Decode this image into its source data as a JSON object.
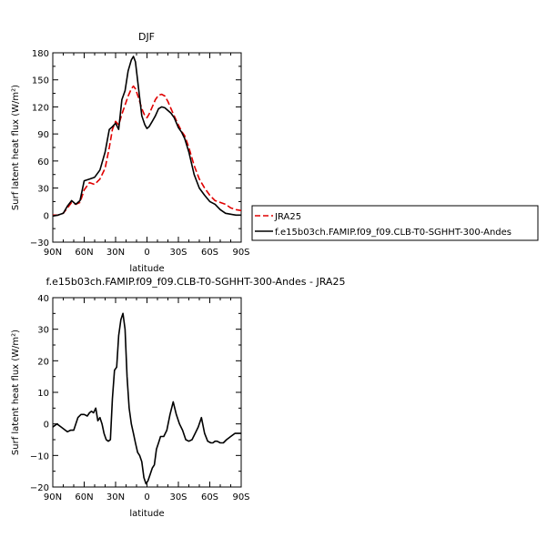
{
  "chart_data": [
    {
      "type": "line",
      "title": "DJF",
      "xlabel": "latitude",
      "ylabel": "Surf latent heat flux (W/m²)",
      "xlim": [
        -90,
        90
      ],
      "ylim": [
        -30,
        180
      ],
      "xticks": [
        -90,
        -60,
        -30,
        0,
        30,
        60,
        90
      ],
      "xtick_labels": [
        "90N",
        "60N",
        "30N",
        "0",
        "30S",
        "60S",
        "90S"
      ],
      "yticks": [
        -30,
        0,
        30,
        60,
        90,
        120,
        150,
        180
      ],
      "ytick_labels": [
        "−30",
        "0",
        "30",
        "60",
        "90",
        "120",
        "150",
        "180"
      ],
      "legend_position": "right",
      "series": [
        {
          "name": "JRA25",
          "color": "#e00000",
          "style": "dashed",
          "x": [
            -90,
            -85,
            -80,
            -76,
            -72,
            -68,
            -64,
            -60,
            -55,
            -50,
            -45,
            -40,
            -36,
            -33,
            -30,
            -27,
            -24,
            -21,
            -18,
            -15,
            -13,
            -11,
            -8,
            -5,
            -2,
            0,
            2,
            5,
            8,
            11,
            14,
            17,
            20,
            23,
            26,
            30,
            33,
            36,
            40,
            45,
            50,
            55,
            60,
            65,
            70,
            75,
            80,
            85,
            90
          ],
          "values": [
            0,
            0,
            2,
            8,
            14,
            12,
            14,
            28,
            36,
            34,
            40,
            52,
            75,
            95,
            104,
            100,
            112,
            122,
            132,
            140,
            143,
            140,
            130,
            118,
            110,
            108,
            112,
            120,
            128,
            133,
            134,
            132,
            126,
            118,
            110,
            100,
            93,
            88,
            75,
            55,
            40,
            30,
            22,
            16,
            14,
            12,
            8,
            6,
            5
          ]
        },
        {
          "name": "f.e15b03ch.FAMIP.f09_f09.CLB-T0-SGHHT-300-Andes",
          "color": "#000000",
          "style": "solid",
          "x": [
            -90,
            -85,
            -80,
            -76,
            -72,
            -68,
            -64,
            -60,
            -55,
            -50,
            -45,
            -40,
            -36,
            -33,
            -30,
            -27,
            -24,
            -21,
            -18,
            -15,
            -13,
            -11,
            -8,
            -5,
            -2,
            0,
            2,
            5,
            8,
            11,
            14,
            17,
            20,
            23,
            26,
            30,
            33,
            36,
            40,
            45,
            50,
            55,
            60,
            65,
            70,
            75,
            80,
            85,
            90
          ],
          "values": [
            -1,
            0,
            2,
            10,
            16,
            12,
            16,
            38,
            40,
            42,
            50,
            70,
            95,
            98,
            102,
            95,
            128,
            138,
            160,
            172,
            176,
            170,
            140,
            110,
            100,
            96,
            98,
            104,
            110,
            118,
            120,
            119,
            116,
            113,
            108,
            97,
            92,
            85,
            70,
            45,
            30,
            22,
            15,
            12,
            6,
            2,
            1,
            0,
            0
          ]
        }
      ]
    },
    {
      "type": "line",
      "title": "f.e15b03ch.FAMIP.f09_f09.CLB-T0-SGHHT-300-Andes - JRA25",
      "xlabel": "latitude",
      "ylabel": "Surf latent heat flux (W/m²)",
      "xlim": [
        -90,
        90
      ],
      "ylim": [
        -20,
        40
      ],
      "xticks": [
        -90,
        -60,
        -30,
        0,
        30,
        60,
        90
      ],
      "xtick_labels": [
        "90N",
        "60N",
        "30N",
        "0",
        "30S",
        "60S",
        "90S"
      ],
      "yticks": [
        -20,
        -10,
        0,
        10,
        20,
        30,
        40
      ],
      "ytick_labels": [
        "−20",
        "−10",
        "0",
        "10",
        "20",
        "30",
        "40"
      ],
      "series": [
        {
          "color": "#000000",
          "style": "solid",
          "x": [
            -90,
            -86,
            -82,
            -78,
            -76,
            -73,
            -70,
            -66,
            -63,
            -60,
            -57,
            -55,
            -53,
            -51,
            -49,
            -47,
            -45,
            -43,
            -41,
            -39,
            -37,
            -35,
            -33,
            -31,
            -29,
            -27,
            -25,
            -23,
            -21,
            -19,
            -17,
            -15,
            -13,
            -11,
            -9,
            -7,
            -5,
            -3,
            -1,
            1,
            3,
            5,
            7,
            9,
            11,
            13,
            16,
            19,
            22,
            25,
            28,
            31,
            34,
            37,
            40,
            43,
            46,
            49,
            52,
            55,
            58,
            61,
            63,
            65,
            67,
            70,
            73,
            76,
            80,
            84,
            87,
            90
          ],
          "values": [
            -1,
            0,
            -1,
            -2,
            -2.5,
            -2,
            -2,
            2,
            3,
            3,
            2.5,
            3.5,
            4,
            3.5,
            5,
            1,
            2,
            0,
            -3,
            -5,
            -5.5,
            -5,
            8,
            17,
            18,
            28,
            33,
            35,
            30,
            15,
            5,
            0,
            -3,
            -6,
            -9,
            -10,
            -12,
            -17,
            -19,
            -18,
            -16,
            -14,
            -13,
            -8,
            -6,
            -4,
            -4,
            -2,
            3,
            7,
            3,
            0,
            -2,
            -5,
            -5.5,
            -5,
            -3,
            -1,
            2,
            -3,
            -5.5,
            -6,
            -6,
            -5.5,
            -5.5,
            -6,
            -6,
            -5,
            -4,
            -3,
            -3,
            -3
          ]
        }
      ]
    }
  ]
}
